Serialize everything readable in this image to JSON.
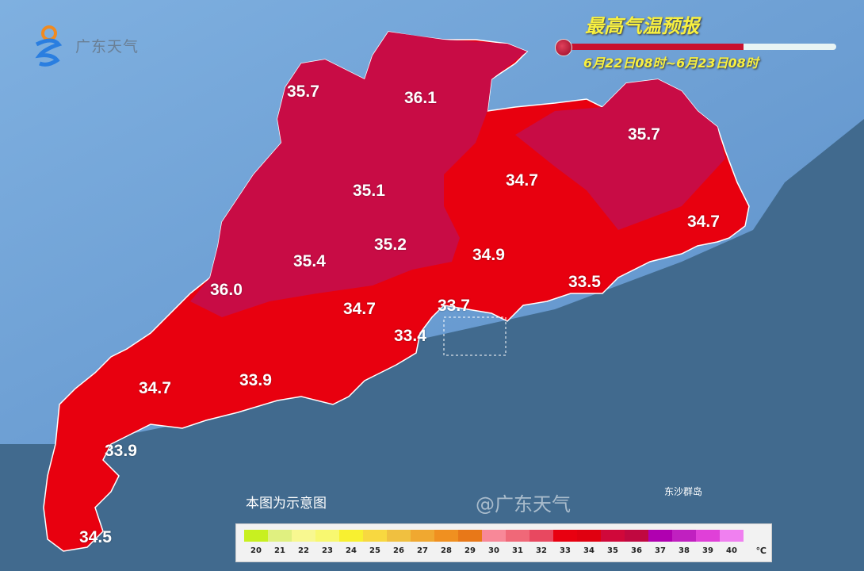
{
  "brand": {
    "logo_text": "广东天气",
    "watermark": "@广东天气"
  },
  "header": {
    "title": "最高气温预报",
    "period": "6月22日08时~6月23日08时",
    "thermometer_fill_fraction": 0.66
  },
  "map": {
    "region": "Guangdong",
    "temperatures": [
      "35.7",
      "36.1",
      "35.7",
      "35.1",
      "34.7",
      "34.7",
      "35.2",
      "35.4",
      "34.9",
      "36.0",
      "33.5",
      "34.7",
      "33.7",
      "33.4",
      "34.7",
      "33.9",
      "33.9",
      "34.5"
    ],
    "island_label": "东沙群岛",
    "note": "本图为示意图",
    "colors": {
      "sea": "#416a8e",
      "land": "#6e9fd4",
      "hot_red": "#e8000f",
      "crimson": "#c80c45"
    }
  },
  "legend": {
    "labels": [
      "20",
      "21",
      "22",
      "23",
      "24",
      "25",
      "26",
      "27",
      "28",
      "29",
      "30",
      "31",
      "32",
      "33",
      "34",
      "35",
      "36",
      "37",
      "38",
      "39",
      "40"
    ],
    "unit": "℃",
    "colors": [
      "#c8f020",
      "#e0f080",
      "#f8f890",
      "#f8f870",
      "#f8f030",
      "#f8d840",
      "#f0c040",
      "#f0a830",
      "#f09020",
      "#e87818",
      "#f88898",
      "#f06878",
      "#e84860",
      "#e80010",
      "#e00010",
      "#d0083a",
      "#c00840",
      "#b000b0",
      "#c020c0",
      "#e040d8",
      "#f080f0"
    ]
  }
}
